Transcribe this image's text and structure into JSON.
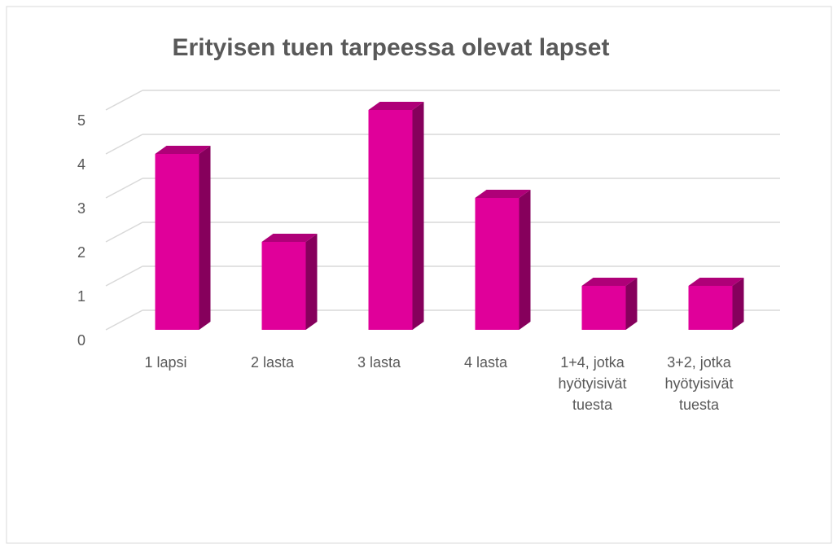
{
  "chart_data": {
    "type": "bar3d",
    "title": "Erityisen tuen tarpeessa olevat lapset",
    "categories": [
      "1 lapsi",
      "2 lasta",
      "3 lasta",
      "4 lasta",
      "1+4, jotka hyötyisivät tuesta",
      "3+2, jotka hyötyisivät tuesta"
    ],
    "values": [
      4,
      2,
      5,
      3,
      1,
      1
    ],
    "color": "#e0009a",
    "ylim": [
      0,
      5
    ],
    "yticks": [
      0,
      1,
      2,
      3,
      4,
      5
    ],
    "grid": true
  }
}
